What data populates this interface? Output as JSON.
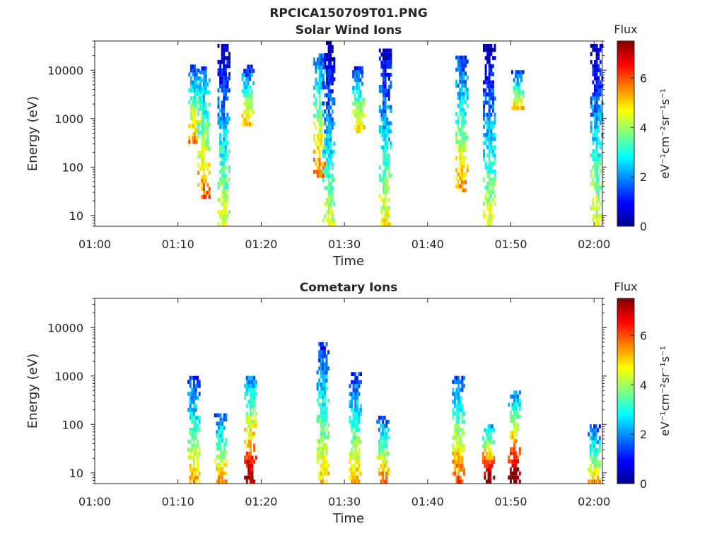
{
  "figure": {
    "title": "RPCICA150709T01.PNG"
  },
  "chart_data": [
    {
      "type": "heatmap",
      "title": "Solar Wind Ions",
      "xlabel": "Time",
      "ylabel": "Energy (eV)",
      "x_ticks": [
        "01:00",
        "01:10",
        "01:20",
        "01:30",
        "01:40",
        "01:50",
        "02:00"
      ],
      "xlim": [
        "01:00",
        "02:01"
      ],
      "y_scale": "log",
      "y_ticks": [
        "10",
        "100",
        "1000",
        "10000"
      ],
      "ylim": [
        6,
        40000
      ],
      "colorbar": {
        "title": "Flux",
        "label": "eV⁻¹cm⁻²sr⁻¹s⁻¹",
        "ticks": [
          "0",
          "2",
          "4",
          "6"
        ],
        "range": [
          0,
          7.5
        ],
        "colormap": "jet"
      },
      "bursts": [
        {
          "time": "01:11.9",
          "emin": 300,
          "emax": 13000,
          "flux": 2.1
        },
        {
          "time": "01:13.0",
          "emin": 22,
          "emax": 12000,
          "flux": 2.3
        },
        {
          "time": "01:15.4",
          "emin": 6,
          "emax": 35000,
          "flux": 1.1
        },
        {
          "time": "01:18.3",
          "emin": 700,
          "emax": 13000,
          "flux": 1.7
        },
        {
          "time": "01:26.9",
          "emin": 60,
          "emax": 22000,
          "flux": 2.4
        },
        {
          "time": "01:28.0",
          "emin": 6,
          "emax": 40000,
          "flux": 0.9
        },
        {
          "time": "01:31.6",
          "emin": 500,
          "emax": 12000,
          "flux": 1.8
        },
        {
          "time": "01:34.8",
          "emin": 6,
          "emax": 28000,
          "flux": 1.2
        },
        {
          "time": "01:44.0",
          "emin": 30,
          "emax": 20000,
          "flux": 2.0
        },
        {
          "time": "01:47.3",
          "emin": 6,
          "emax": 35000,
          "flux": 1.0
        },
        {
          "time": "01:50.7",
          "emin": 1500,
          "emax": 10000,
          "flux": 1.7
        },
        {
          "time": "02:00.2",
          "emin": 6,
          "emax": 35000,
          "flux": 1.1
        }
      ]
    },
    {
      "type": "heatmap",
      "title": "Cometary Ions",
      "xlabel": "Time",
      "ylabel": "Energy (eV)",
      "x_ticks": [
        "01:00",
        "01:10",
        "01:20",
        "01:30",
        "01:40",
        "01:50",
        "02:00"
      ],
      "xlim": [
        "01:00",
        "02:01"
      ],
      "y_scale": "log",
      "y_ticks": [
        "10",
        "100",
        "1000",
        "10000"
      ],
      "ylim": [
        6,
        40000
      ],
      "colorbar": {
        "title": "Flux",
        "label": "eV⁻¹cm⁻²sr⁻¹s⁻¹",
        "ticks": [
          "0",
          "2",
          "4",
          "6"
        ],
        "range": [
          0,
          7.5
        ],
        "colormap": "jet"
      },
      "bursts": [
        {
          "time": "01:11.8",
          "emin": 6,
          "emax": 1000,
          "flux": 4.6
        },
        {
          "time": "01:15.0",
          "emin": 6,
          "emax": 170,
          "flux": 4.9
        },
        {
          "time": "01:18.6",
          "emin": 6,
          "emax": 1000,
          "flux": 6.5
        },
        {
          "time": "01:27.3",
          "emin": 6,
          "emax": 5000,
          "flux": 4.4
        },
        {
          "time": "01:31.2",
          "emin": 6,
          "emax": 1200,
          "flux": 4.6
        },
        {
          "time": "01:34.5",
          "emin": 6,
          "emax": 150,
          "flux": 5.1
        },
        {
          "time": "01:43.6",
          "emin": 6,
          "emax": 1000,
          "flux": 5.3
        },
        {
          "time": "01:47.2",
          "emin": 6,
          "emax": 100,
          "flux": 6.9
        },
        {
          "time": "01:50.3",
          "emin": 6,
          "emax": 500,
          "flux": 6.8
        },
        {
          "time": "01:59.9",
          "emin": 6,
          "emax": 100,
          "flux": 4.5
        }
      ]
    }
  ]
}
